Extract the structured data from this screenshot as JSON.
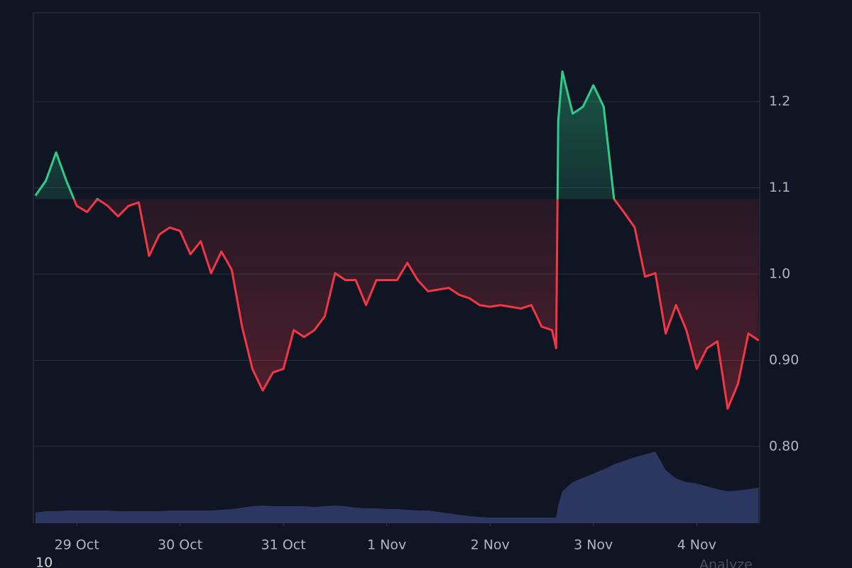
{
  "chart_data": {
    "type": "baseline",
    "baseline": 1.087,
    "x": [
      -0.4,
      -0.3,
      -0.2,
      -0.1,
      0.0,
      0.1,
      0.2,
      0.3,
      0.4,
      0.5,
      0.6,
      0.7,
      0.8,
      0.9,
      1.0,
      1.1,
      1.2,
      1.3,
      1.4,
      1.5,
      1.6,
      1.7,
      1.8,
      1.9,
      2.0,
      2.1,
      2.2,
      2.3,
      2.4,
      2.5,
      2.6,
      2.7,
      2.8,
      2.9,
      3.0,
      3.1,
      3.2,
      3.3,
      3.4,
      3.5,
      3.6,
      3.7,
      3.8,
      3.9,
      4.0,
      4.1,
      4.2,
      4.3,
      4.4,
      4.5,
      4.6,
      4.64,
      4.66,
      4.7,
      4.8,
      4.9,
      5.0,
      5.1,
      5.2,
      5.3,
      5.4,
      5.5,
      5.6,
      5.7,
      5.8,
      5.9,
      6.0,
      6.1,
      6.2,
      6.3,
      6.4,
      6.5,
      6.6
    ],
    "series": [
      {
        "type": "line",
        "color": "#2ecc8a",
        "color_below": "#f23645",
        "values": [
          1.091,
          1.108,
          1.141,
          1.108,
          1.079,
          1.072,
          1.087,
          1.079,
          1.067,
          1.079,
          1.083,
          1.021,
          1.046,
          1.054,
          1.05,
          1.023,
          1.038,
          1.001,
          1.026,
          1.005,
          0.939,
          0.89,
          0.865,
          0.886,
          0.89,
          0.935,
          0.927,
          0.935,
          0.951,
          1.001,
          0.993,
          0.993,
          0.964,
          0.993,
          0.993,
          0.993,
          1.013,
          0.993,
          0.98,
          0.982,
          0.984,
          0.976,
          0.972,
          0.964,
          0.962,
          0.964,
          0.962,
          0.96,
          0.964,
          0.939,
          0.935,
          0.914,
          1.178,
          1.235,
          1.186,
          1.194,
          1.219,
          1.194,
          1.087,
          1.071,
          1.054,
          0.997,
          1.001,
          0.931,
          0.964,
          0.935,
          0.89,
          0.914,
          0.922,
          0.844,
          0.873,
          0.931,
          0.923
        ]
      },
      {
        "type": "area",
        "axis": "y2",
        "color": "#2b3760",
        "values": [
          15,
          17,
          17,
          18,
          18,
          18,
          18,
          18,
          17,
          17,
          17,
          17,
          17,
          18,
          18,
          18,
          18,
          18,
          19,
          20,
          22,
          24,
          25,
          24,
          24,
          24,
          24,
          23,
          24,
          25,
          24,
          22,
          21,
          21,
          20,
          20,
          19,
          18,
          18,
          16,
          14,
          12,
          10,
          9,
          8,
          8,
          8,
          8,
          8,
          8,
          8,
          8,
          25,
          45,
          58,
          64,
          70,
          76,
          83,
          88,
          93,
          97,
          101,
          75,
          63,
          58,
          56,
          52,
          48,
          45,
          46,
          48,
          50
        ]
      }
    ],
    "xlim": [
      -0.42,
      6.61
    ],
    "xticks": [
      {
        "value": 0,
        "label": "29 Oct"
      },
      {
        "value": 1,
        "label": "30 Oct"
      },
      {
        "value": 2,
        "label": "31 Oct"
      },
      {
        "value": 3,
        "label": "1 Nov"
      },
      {
        "value": 4,
        "label": "2 Nov"
      },
      {
        "value": 5,
        "label": "3 Nov"
      },
      {
        "value": 6,
        "label": "4 Nov"
      }
    ],
    "ylim": [
      0.711,
      1.303
    ],
    "yticks": [
      {
        "value": 0.8,
        "label": "0.80"
      },
      {
        "value": 0.9,
        "label": "0.90"
      },
      {
        "value": 1.0,
        "label": "1.0"
      },
      1.1,
      1.2
    ],
    "y2lim": [
      0,
      105
    ],
    "grid": true
  },
  "footer": {
    "left": "10",
    "right": "Analyze"
  }
}
